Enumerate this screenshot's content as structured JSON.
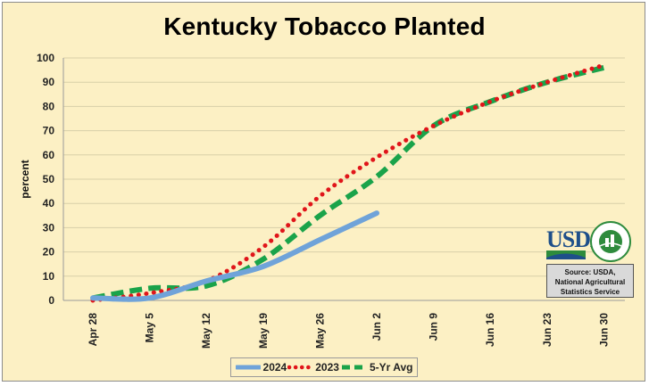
{
  "chart_data": {
    "type": "line",
    "title": "Kentucky Tobacco Planted",
    "ylabel": "percent",
    "xlabel": "",
    "ylim": [
      0,
      100
    ],
    "yticks": [
      0,
      10,
      20,
      30,
      40,
      50,
      60,
      70,
      80,
      90,
      100
    ],
    "categories": [
      "Apr 28",
      "May 5",
      "May 12",
      "May 19",
      "May 26",
      "Jun 2",
      "Jun 9",
      "Jun 16",
      "Jun 23",
      "Jun 30"
    ],
    "grid": true,
    "legend_position": "bottom",
    "series": [
      {
        "name": "2024",
        "color": "#6fa3d9",
        "style": "solid",
        "values": [
          1,
          1,
          8,
          14,
          25,
          36,
          null,
          null,
          null,
          null
        ]
      },
      {
        "name": "2023",
        "color": "#e0151a",
        "style": "dotted",
        "values": [
          0,
          3,
          8,
          22,
          43,
          59,
          72,
          82,
          90,
          97
        ]
      },
      {
        "name": "5-Yr Avg",
        "color": "#1aa34a",
        "style": "dashed",
        "values": [
          1,
          5,
          6,
          17,
          35,
          51,
          72,
          82,
          90,
          96
        ]
      }
    ]
  },
  "source_box": {
    "logo_text": "USDA",
    "logo_ring_text": "AGRICULTURE COUNTS",
    "source_line1": "Source: USDA,",
    "source_line2": "National Agricultural",
    "source_line3": "Statistics Service"
  }
}
